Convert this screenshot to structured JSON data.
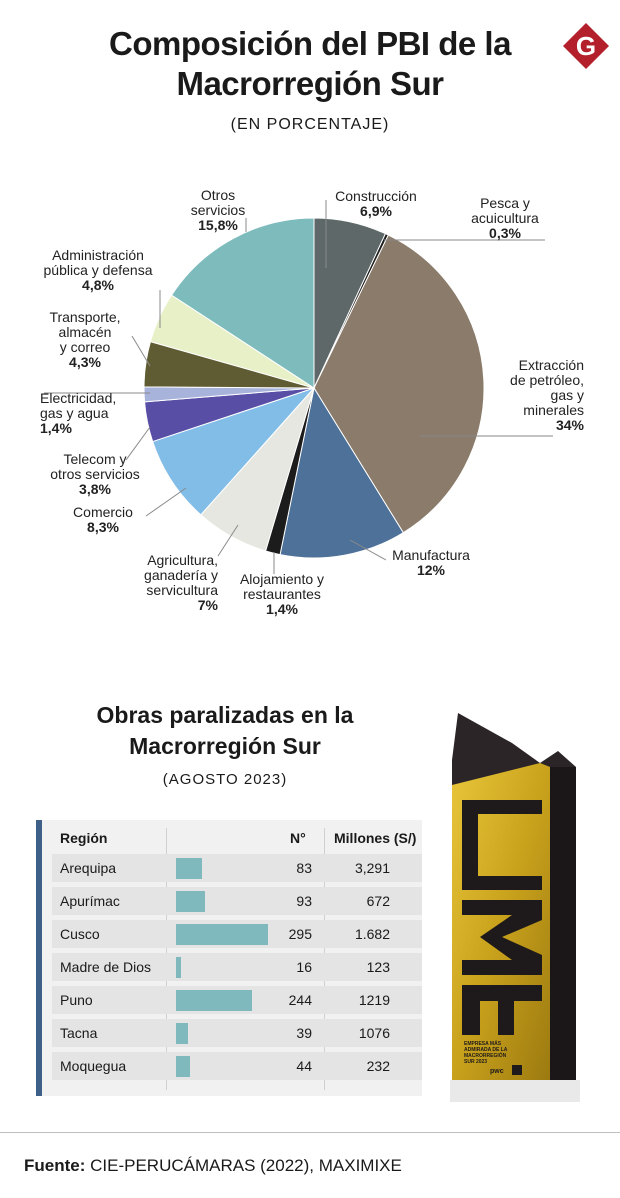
{
  "header": {
    "title_line1": "Composición del PBI de la",
    "title_line2": "Macrorregión Sur",
    "subtitle": "(EN PORCENTAJE)",
    "logo_letter": "G"
  },
  "chart_data": [
    {
      "type": "pie",
      "title": "Composición del PBI de la Macrorregión Sur",
      "subtitle": "(EN PORCENTAJE)",
      "slices": [
        {
          "label_lines": [
            "Construcción"
          ],
          "value": 6.9,
          "value_label": "6,9%",
          "color": "#5e6868"
        },
        {
          "label_lines": [
            "Pesca y",
            "acuicultura"
          ],
          "value": 0.3,
          "value_label": "0,3%",
          "color": "#1e1e1e"
        },
        {
          "label_lines": [
            "Extracción",
            "de petróleo,",
            "gas y",
            "minerales"
          ],
          "value": 34,
          "value_label": "34%",
          "color": "#8a7b6a"
        },
        {
          "label_lines": [
            "Manufactura"
          ],
          "value": 12,
          "value_label": "12%",
          "color": "#4d7199"
        },
        {
          "label_lines": [
            "Alojamiento y",
            "restaurantes"
          ],
          "value": 1.4,
          "value_label": "1,4%",
          "color": "#1c1c1c"
        },
        {
          "label_lines": [
            "Agricultura,",
            "ganadería y",
            "servicultura"
          ],
          "value": 7,
          "value_label": "7%",
          "color": "#e7e7e2"
        },
        {
          "label_lines": [
            "Comercio"
          ],
          "value": 8.3,
          "value_label": "8,3%",
          "color": "#82bde8"
        },
        {
          "label_lines": [
            "Telecom y",
            "otros servicios"
          ],
          "value": 3.8,
          "value_label": "3,8%",
          "color": "#584ea6"
        },
        {
          "label_lines": [
            "Electricidad,",
            "gas y agua"
          ],
          "value": 1.4,
          "value_label": "1,4%",
          "color": "#a8b3dc"
        },
        {
          "label_lines": [
            "Transporte,",
            "almacén",
            "y correo"
          ],
          "value": 4.3,
          "value_label": "4,3%",
          "color": "#5f5c33"
        },
        {
          "label_lines": [
            "Administración",
            "pública y defensa"
          ],
          "value": 4.8,
          "value_label": "4,8%",
          "color": "#e7f0c7"
        },
        {
          "label_lines": [
            "Otros",
            "servicios"
          ],
          "value": 15.8,
          "value_label": "15,8%",
          "color": "#7dbbbc"
        }
      ]
    },
    {
      "type": "table",
      "title": "Obras paralizadas en la Macrorregión Sur",
      "subtitle": "(AGOSTO 2023)",
      "columns": [
        "Región",
        "N°",
        "Millones (S/)"
      ],
      "rows": [
        {
          "region": "Arequipa",
          "n": 83,
          "n_label": "83",
          "millones": "3,291"
        },
        {
          "region": "Apurímac",
          "n": 93,
          "n_label": "93",
          "millones": "672"
        },
        {
          "region": "Cusco",
          "n": 295,
          "n_label": "295",
          "millones": "1.682"
        },
        {
          "region": "Madre de Dios",
          "n": 16,
          "n_label": "16",
          "millones": "123"
        },
        {
          "region": "Puno",
          "n": 244,
          "n_label": "244",
          "millones": "1219"
        },
        {
          "region": "Tacna",
          "n": 39,
          "n_label": "39",
          "millones": "1076"
        },
        {
          "region": "Moquegua",
          "n": 44,
          "n_label": "44",
          "millones": "232"
        }
      ],
      "bar_max": 295,
      "bar_color": "#7fb9bd"
    }
  ],
  "section2": {
    "title_line1": "Obras paralizadas en la",
    "title_line2": "Macrorregión Sur",
    "subtitle": "(AGOSTO 2023)"
  },
  "award": {
    "letters": "EMA",
    "caption_lines": [
      "EMPRESA MÁS",
      "ADMIRADA DE LA",
      "MACRORREGIÓN",
      "SUR 2023"
    ],
    "sponsor": "pwc"
  },
  "footer": {
    "source_label": "Fuente:",
    "source_text": " CIE-PERUCÁMARAS (2022), MAXIMIXE"
  }
}
